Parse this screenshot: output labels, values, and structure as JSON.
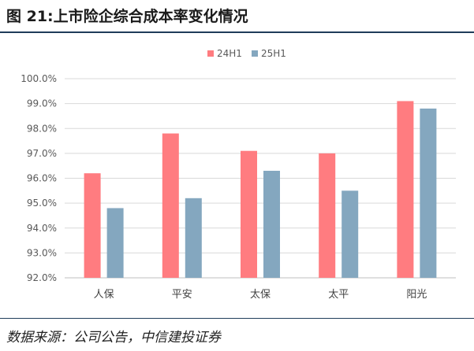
{
  "figure": {
    "title": "图 21:上市险企综合成本率变化情况",
    "source": "数据来源：公司公告，中信建投证券"
  },
  "chart_data": {
    "type": "bar",
    "title": "",
    "xlabel": "",
    "ylabel": "",
    "categories": [
      "人保",
      "平安",
      "太保",
      "太平",
      "阳光"
    ],
    "series": [
      {
        "name": "24H1",
        "color": "#ff7c80",
        "values": [
          96.2,
          97.8,
          97.1,
          97.0,
          99.1
        ]
      },
      {
        "name": "25H1",
        "color": "#84a7bf",
        "values": [
          94.8,
          95.2,
          96.3,
          95.5,
          98.8
        ]
      }
    ],
    "ylim": [
      92.0,
      100.0
    ],
    "yticks": [
      92.0,
      93.0,
      94.0,
      95.0,
      96.0,
      97.0,
      98.0,
      99.0,
      100.0
    ],
    "ytick_format": "percent_1dp",
    "grid": "horizontal",
    "legend_position": "top-center"
  }
}
